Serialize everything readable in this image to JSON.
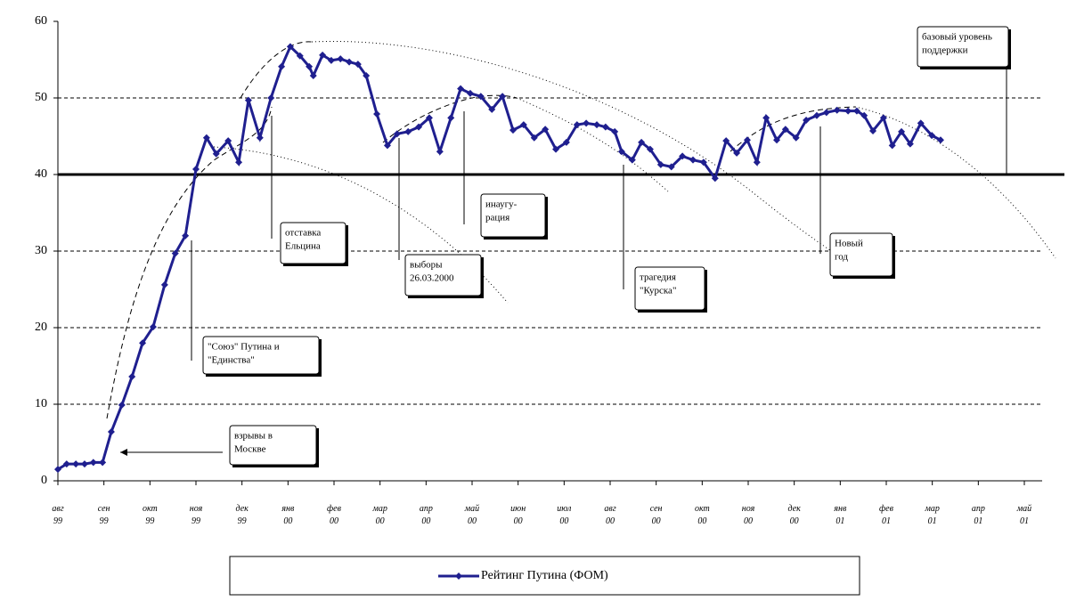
{
  "chart_data": {
    "type": "line",
    "xlim": [
      0,
      21
    ],
    "xticks": [
      0,
      1,
      2,
      3,
      4,
      5,
      6,
      7,
      8,
      9,
      10,
      11,
      12,
      13,
      14,
      15,
      16,
      17,
      18,
      19,
      20,
      21
    ],
    "x_tick_labels": [
      [
        "авг",
        "99"
      ],
      [
        "сен",
        "99"
      ],
      [
        "окт",
        "99"
      ],
      [
        "ноя",
        "99"
      ],
      [
        "дек",
        "99"
      ],
      [
        "янв",
        "00"
      ],
      [
        "фев",
        "00"
      ],
      [
        "мар",
        "00"
      ],
      [
        "апр",
        "00"
      ],
      [
        "май",
        "00"
      ],
      [
        "июн",
        "00"
      ],
      [
        "июл",
        "00"
      ],
      [
        "авг",
        "00"
      ],
      [
        "сен",
        "00"
      ],
      [
        "окт",
        "00"
      ],
      [
        "ноя",
        "00"
      ],
      [
        "дек",
        "00"
      ],
      [
        "янв",
        "01"
      ],
      [
        "фев",
        "01"
      ],
      [
        "мар",
        "01"
      ],
      [
        "апр",
        "01"
      ],
      [
        "май",
        "01"
      ]
    ],
    "ylim": [
      0,
      60
    ],
    "yticks": [
      0,
      10,
      20,
      30,
      40,
      50,
      60
    ],
    "grid": true,
    "baseline": 40,
    "series": [
      {
        "name": "Рейтинг Путина (ФОМ)",
        "color": "#1f1f8f",
        "x": [
          0,
          0.19,
          0.39,
          0.58,
          0.77,
          0.97,
          1.16,
          1.39,
          1.61,
          1.84,
          2.07,
          2.32,
          2.55,
          2.77,
          3.0,
          3.23,
          3.44,
          3.7,
          3.93,
          4.14,
          4.39,
          4.63,
          4.86,
          5.05,
          5.26,
          5.46,
          5.55,
          5.75,
          5.94,
          6.14,
          6.33,
          6.52,
          6.7,
          6.93,
          7.16,
          7.37,
          7.61,
          7.84,
          8.07,
          8.3,
          8.54,
          8.75,
          8.96,
          9.19,
          9.43,
          9.66,
          9.89,
          10.12,
          10.35,
          10.59,
          10.82,
          11.05,
          11.28,
          11.48,
          11.71,
          11.9,
          12.1,
          12.25,
          12.48,
          12.68,
          12.87,
          13.1,
          13.33,
          13.57,
          13.8,
          14.03,
          14.28,
          14.52,
          14.75,
          14.98,
          15.19,
          15.39,
          15.62,
          15.81,
          16.04,
          16.26,
          16.49,
          16.7,
          16.93,
          17.17,
          17.36,
          17.52,
          17.71,
          17.94,
          18.13,
          18.33,
          18.52,
          18.75,
          18.99,
          19.18
        ],
        "values": [
          1.5,
          2.2,
          2.2,
          2.2,
          2.4,
          2.4,
          6.4,
          9.9,
          13.6,
          18.0,
          20.1,
          25.6,
          29.7,
          32.0,
          40.7,
          44.8,
          42.7,
          44.4,
          41.6,
          49.7,
          44.8,
          50.0,
          54.1,
          56.7,
          55.5,
          54.1,
          52.9,
          55.6,
          54.9,
          55.1,
          54.7,
          54.4,
          52.9,
          47.9,
          43.8,
          45.3,
          45.6,
          46.2,
          47.4,
          43.0,
          47.4,
          51.2,
          50.6,
          50.2,
          48.5,
          50.2,
          45.8,
          46.5,
          44.8,
          45.9,
          43.3,
          44.2,
          46.5,
          46.7,
          46.5,
          46.2,
          45.6,
          43.0,
          41.9,
          44.2,
          43.3,
          41.3,
          41.0,
          42.4,
          41.9,
          41.6,
          39.5,
          44.4,
          42.8,
          44.5,
          41.6,
          47.4,
          44.5,
          45.9,
          44.8,
          47.1,
          47.7,
          48.1,
          48.4,
          48.3,
          48.3,
          47.7,
          45.7,
          47.4,
          43.8,
          45.6,
          44.0,
          46.7,
          45.1,
          44.5
        ]
      }
    ],
    "annotations": [
      {
        "lines": [
          "взрывы в",
          "Москве"
        ]
      },
      {
        "lines": [
          "\"Союз\" Путина и",
          "\"Единства\""
        ]
      },
      {
        "lines": [
          "отставка",
          "Ельцина"
        ]
      },
      {
        "lines": [
          "выборы",
          "26.03.2000"
        ]
      },
      {
        "lines": [
          "инаугу-",
          "рация"
        ]
      },
      {
        "lines": [
          "трагедия",
          "\"Курска\""
        ]
      },
      {
        "lines": [
          "Новый",
          "год"
        ]
      },
      {
        "lines": [
          "базовый уровень",
          "поддержки"
        ]
      }
    ]
  }
}
